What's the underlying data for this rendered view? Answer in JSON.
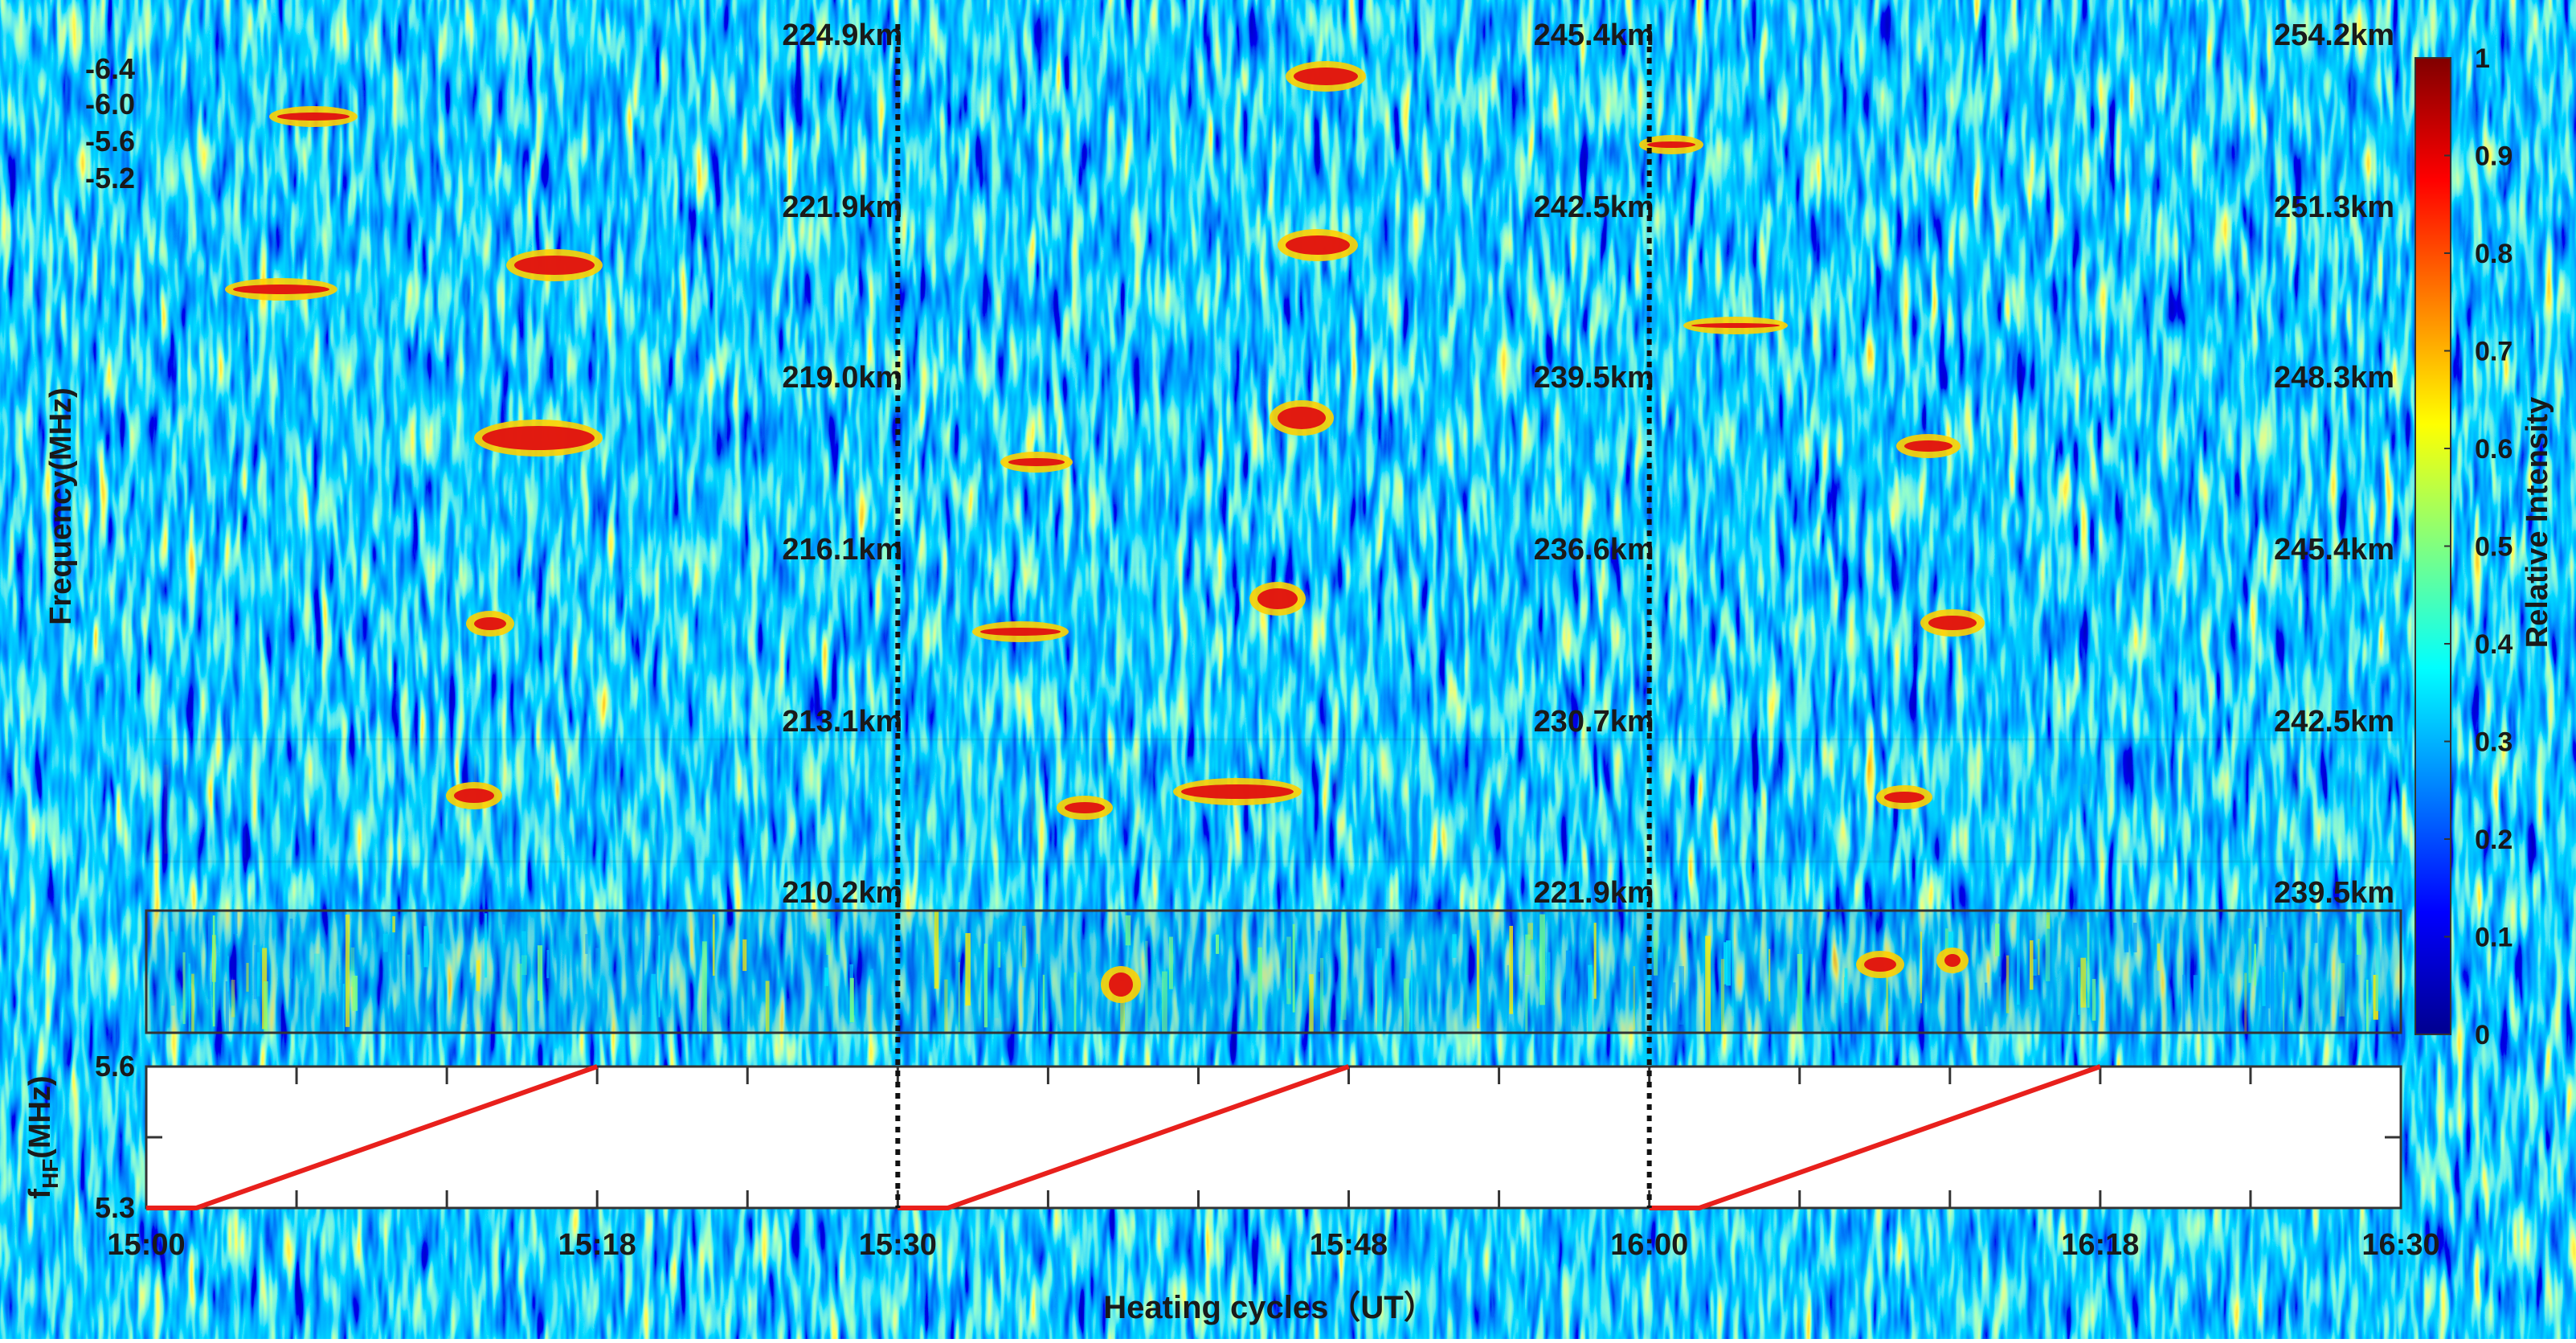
{
  "chart_data": {
    "type": "heatmap",
    "ylabel": "Frequency(MHz)",
    "xlabel": "Heating cycles（UT）",
    "colorbar": {
      "label": "Relative Intensity",
      "range": [
        0,
        1
      ],
      "ticks": [
        "0",
        "0.1",
        "0.2",
        "0.3",
        "0.4",
        "0.5",
        "0.6",
        "0.7",
        "0.8",
        "0.9",
        "1"
      ],
      "colors": [
        "#00008f",
        "#0000ff",
        "#0080ff",
        "#00ffff",
        "#80ff80",
        "#ffff00",
        "#ff8000",
        "#ff0000",
        "#800000"
      ]
    },
    "freq_ticks": [
      "-6.4",
      "-6.0",
      "-5.6",
      "-5.2"
    ],
    "cycle_boundaries": [
      "15:30",
      "16:00"
    ],
    "rows": [
      {
        "heights": [
          "224.9km",
          "245.4km",
          "254.2km"
        ]
      },
      {
        "heights": [
          "221.9km",
          "242.5km",
          "251.3km"
        ]
      },
      {
        "heights": [
          "219.0km",
          "239.5km",
          "248.3km"
        ]
      },
      {
        "heights": [
          "216.1km",
          "236.6km",
          "245.4km"
        ]
      },
      {
        "heights": [
          "213.1km",
          "230.7km",
          "242.5km"
        ]
      },
      {
        "heights": [
          "210.2km",
          "221.9km",
          "239.5km"
        ]
      }
    ],
    "hf_panel": {
      "ylabel": "f",
      "ylabel_sub": "HF",
      "ylabel_unit": "(MHz)",
      "ylim": [
        5.3,
        5.6
      ],
      "yticks": [
        "5.3",
        "5.6"
      ],
      "xticks": [
        "15:00",
        "15:18",
        "15:30",
        "15:48",
        "16:00",
        "16:18",
        "16:30"
      ],
      "sweeps": [
        {
          "flat_start": "15:00",
          "ramp_start": "15:02",
          "ramp_end": "15:18",
          "f_start": 5.3,
          "f_end": 5.6
        },
        {
          "flat_start": "15:30",
          "ramp_start": "15:32",
          "ramp_end": "15:48",
          "f_start": 5.3,
          "f_end": 5.6
        },
        {
          "flat_start": "16:00",
          "ramp_start": "16:02",
          "ramp_end": "16:18",
          "f_start": 5.3,
          "f_end": 5.6
        }
      ],
      "line_color": "#e8201c"
    }
  }
}
